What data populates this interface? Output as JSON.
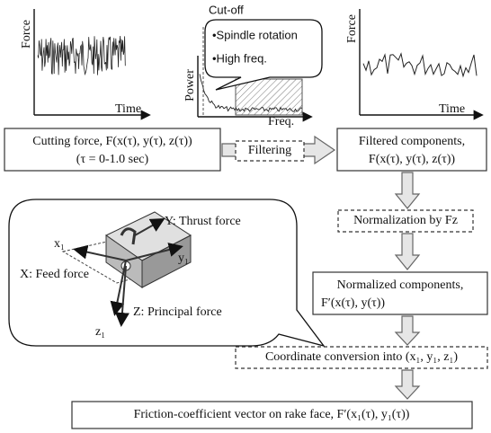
{
  "plots": {
    "raw": {
      "y_label": "Force",
      "x_label": "Time"
    },
    "spectrum": {
      "y_label": "Power",
      "x_label": "Freq.",
      "cutoff_label": "Cut-off",
      "notes": [
        "•Spindle rotation",
        "•High freq."
      ]
    },
    "filtered": {
      "y_label": "Force",
      "x_label": "Time"
    }
  },
  "nodes": [
    {
      "lines": [
        "Cutting force, F(x(τ), y(τ), z(τ))",
        "(τ = 0-1.0 sec)"
      ]
    },
    {
      "label": "Filtering"
    },
    {
      "lines": [
        "Filtered components,",
        "F(x(τ), y(τ), z(τ))"
      ]
    },
    {
      "label": "Normalization by Fz"
    },
    {
      "lines": [
        "Normalized components,",
        "F′(x(τ), y(τ))"
      ]
    },
    {
      "label": "Coordinate conversion into (x₁, y₁, z₁)"
    },
    {
      "label": "Friction-coefficient vector on rake face, F′(x₁(τ), y₁(τ))"
    }
  ],
  "tool_figure": {
    "labels": [
      "Y: Thrust force",
      "x₁",
      "y₁",
      "X: Feed force",
      "Z: Principal force",
      "z₁"
    ]
  }
}
